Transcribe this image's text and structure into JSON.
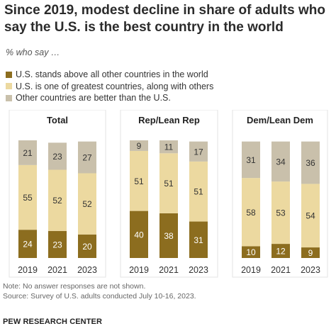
{
  "header": {
    "title": "Since 2019, modest decline in share of adults who say the U.S. is the best country in the world",
    "subtitle": "% who say …"
  },
  "legend": [
    {
      "label": "U.S. stands above all other countries in the world",
      "color": "#8c6d1f"
    },
    {
      "label": "U.S. is one of greatest countries, along with others",
      "color": "#ecd9a0"
    },
    {
      "label": "Other countries are better than the U.S.",
      "color": "#c9c0ab"
    }
  ],
  "chart_data": {
    "type": "bar",
    "stacked": true,
    "categories": [
      "2019",
      "2021",
      "2023"
    ],
    "panels": [
      {
        "title": "Total",
        "series": [
          {
            "name": "U.S. stands above all other countries in the world",
            "values": [
              24,
              23,
              20
            ]
          },
          {
            "name": "U.S. is one of greatest countries, along with others",
            "values": [
              55,
              52,
              52
            ]
          },
          {
            "name": "Other countries are better than the U.S.",
            "values": [
              21,
              23,
              27
            ]
          }
        ]
      },
      {
        "title": "Rep/Lean Rep",
        "series": [
          {
            "name": "U.S. stands above all other countries in the world",
            "values": [
              40,
              38,
              31
            ]
          },
          {
            "name": "U.S. is one of greatest countries, along with others",
            "values": [
              51,
              51,
              51
            ]
          },
          {
            "name": "Other countries are better than the U.S.",
            "values": [
              9,
              11,
              17
            ]
          }
        ]
      },
      {
        "title": "Dem/Lean Dem",
        "series": [
          {
            "name": "U.S. stands above all other countries in the world",
            "values": [
              10,
              12,
              9
            ]
          },
          {
            "name": "U.S. is one of greatest countries, along with others",
            "values": [
              58,
              53,
              54
            ]
          },
          {
            "name": "Other countries are better than the U.S.",
            "values": [
              31,
              34,
              36
            ]
          }
        ]
      }
    ],
    "colors": [
      "#8c6d1f",
      "#ecd9a0",
      "#c9c0ab"
    ],
    "label_colors": [
      "#ffffff",
      "#333333",
      "#333333"
    ],
    "ylim": [
      0,
      100
    ]
  },
  "footer": {
    "note": "Note: No answer responses are not shown.",
    "source": "Source: Survey of U.S. adults conducted July 10-16, 2023.",
    "org": "PEW RESEARCH CENTER"
  }
}
